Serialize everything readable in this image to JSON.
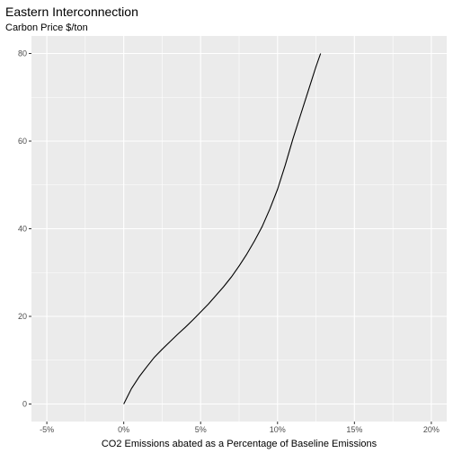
{
  "chart_data": {
    "type": "line",
    "title": "Eastern Interconnection",
    "subtitle": "Carbon Price $/ton",
    "xlabel": "CO2 Emissions abated as a Percentage of Baseline Emissions",
    "ylabel": "",
    "xlim": [
      -0.06,
      0.21
    ],
    "ylim": [
      -4,
      84
    ],
    "x_ticks": [
      -0.05,
      0,
      0.05,
      0.1,
      0.15,
      0.2
    ],
    "x_tick_labels": [
      "-5%",
      "0%",
      "5%",
      "10%",
      "15%",
      "20%"
    ],
    "y_ticks": [
      0,
      20,
      40,
      60,
      80
    ],
    "y_tick_labels": [
      "0",
      "20",
      "40",
      "60",
      "80"
    ],
    "grid": true,
    "colors": {
      "panel": "#ebebeb",
      "grid": "#ffffff",
      "line": "#000000"
    },
    "series": [
      {
        "x": [
          0.0,
          0.005,
          0.01,
          0.015,
          0.02,
          0.025,
          0.03,
          0.035,
          0.04,
          0.045,
          0.05,
          0.055,
          0.06,
          0.065,
          0.07,
          0.075,
          0.08,
          0.085,
          0.09,
          0.095,
          0.1,
          0.105,
          0.11,
          0.115,
          0.12,
          0.125,
          0.128
        ],
        "y": [
          0,
          3.5,
          6.2,
          8.5,
          10.7,
          12.5,
          14.2,
          15.9,
          17.5,
          19.2,
          21.0,
          22.8,
          24.8,
          26.8,
          29.0,
          31.5,
          34.2,
          37.2,
          40.5,
          44.5,
          49.0,
          54.5,
          60.5,
          66.0,
          71.5,
          77.0,
          80.0
        ]
      }
    ]
  }
}
